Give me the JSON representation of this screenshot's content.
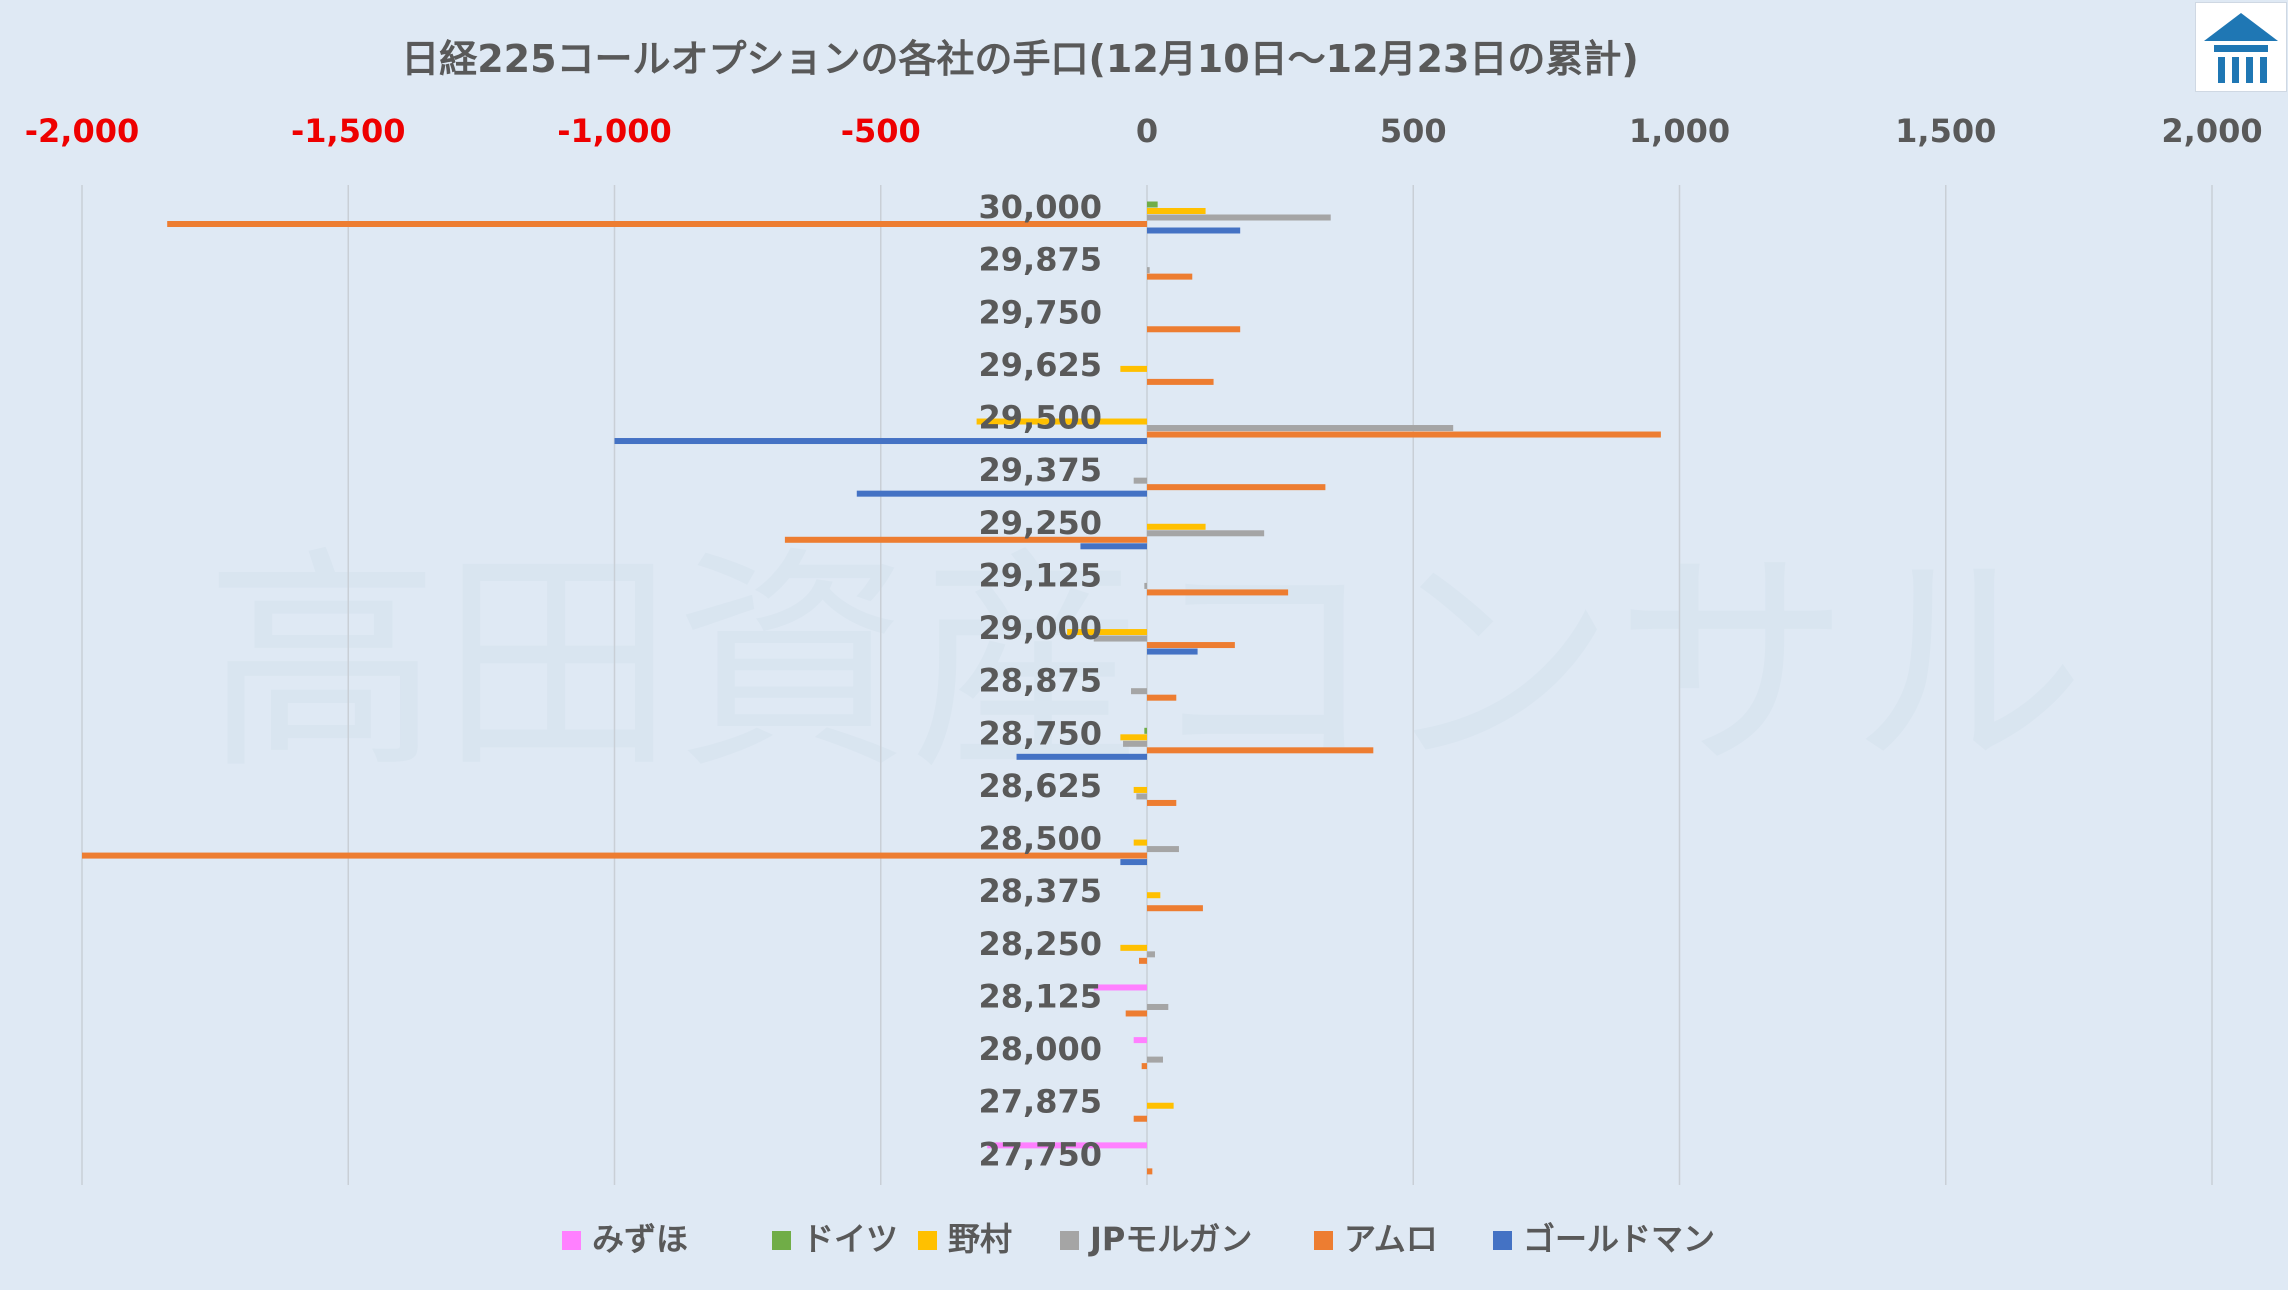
{
  "chart_data": {
    "type": "bar",
    "orientation": "horizontal",
    "title": "日経225コールオプションの各社の手口(12月10日～12月23日の累計)",
    "watermark": "高田資産コンサル",
    "xlim": [
      -2000,
      2000
    ],
    "x_ticks": [
      {
        "value": -2000,
        "label": "-2,000"
      },
      {
        "value": -1500,
        "label": "-1,500"
      },
      {
        "value": -1000,
        "label": "-1,000"
      },
      {
        "value": -500,
        "label": "-500"
      },
      {
        "value": 0,
        "label": "0"
      },
      {
        "value": 500,
        "label": "500"
      },
      {
        "value": 1000,
        "label": "1,000"
      },
      {
        "value": 1500,
        "label": "1,500"
      },
      {
        "value": 2000,
        "label": "2,000"
      }
    ],
    "negative_tick_color": "#ee0000",
    "positive_tick_color": "#595959",
    "grid": true,
    "legend_position": "bottom",
    "categories": [
      "30,000",
      "29,875",
      "29,750",
      "29,625",
      "29,500",
      "29,375",
      "29,250",
      "29,125",
      "29,000",
      "28,875",
      "28,750",
      "28,625",
      "28,500",
      "28,375",
      "28,250",
      "28,125",
      "28,000",
      "27,875",
      "27,750"
    ],
    "series": [
      {
        "name": "みずほ",
        "color": "#ff80ff",
        "values": [
          0,
          0,
          0,
          0,
          0,
          0,
          0,
          0,
          0,
          0,
          0,
          0,
          0,
          0,
          0,
          -100,
          -25,
          0,
          -300
        ]
      },
      {
        "name": "ドイツ",
        "color": "#70ad47",
        "values": [
          20,
          0,
          0,
          0,
          0,
          0,
          0,
          0,
          0,
          0,
          -5,
          0,
          0,
          0,
          0,
          0,
          0,
          0,
          0
        ]
      },
      {
        "name": "野村",
        "color": "#ffc000",
        "values": [
          110,
          0,
          0,
          -50,
          -320,
          0,
          110,
          0,
          -150,
          0,
          -50,
          -25,
          -25,
          25,
          -50,
          0,
          0,
          50,
          0
        ]
      },
      {
        "name": "JPモルガン",
        "color": "#a5a5a5",
        "values": [
          345,
          5,
          0,
          0,
          575,
          -25,
          220,
          -5,
          -100,
          -30,
          -45,
          -20,
          60,
          0,
          15,
          40,
          30,
          0,
          0
        ]
      },
      {
        "name": "アムロ",
        "color": "#ed7d31",
        "values": [
          -1840,
          85,
          175,
          125,
          965,
          335,
          -680,
          265,
          165,
          55,
          425,
          55,
          -2000,
          105,
          -15,
          -40,
          -10,
          -25,
          10
        ]
      },
      {
        "name": "ゴールドマン",
        "color": "#4472c4",
        "values": [
          175,
          0,
          0,
          0,
          -1000,
          -545,
          -125,
          0,
          95,
          0,
          -245,
          0,
          -50,
          0,
          0,
          0,
          0,
          0,
          0
        ]
      }
    ]
  }
}
